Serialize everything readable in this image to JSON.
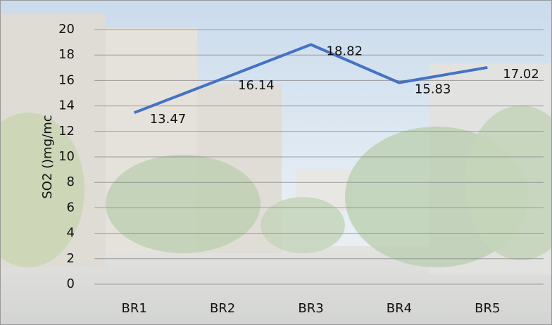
{
  "chart_data": {
    "type": "line",
    "y_axis_label": "SO2 ()mg/mc",
    "categories": [
      "BR1",
      "BR2",
      "BR3",
      "BR4",
      "BR5"
    ],
    "series": [
      {
        "name": "SO2",
        "color": "#4472c4",
        "values": [
          13.47,
          16.14,
          18.82,
          15.83,
          17.02
        ]
      }
    ],
    "ylim": [
      0,
      20
    ],
    "yticks": [
      0,
      2,
      4,
      6,
      8,
      10,
      12,
      14,
      16,
      18,
      20
    ],
    "grid": true
  }
}
